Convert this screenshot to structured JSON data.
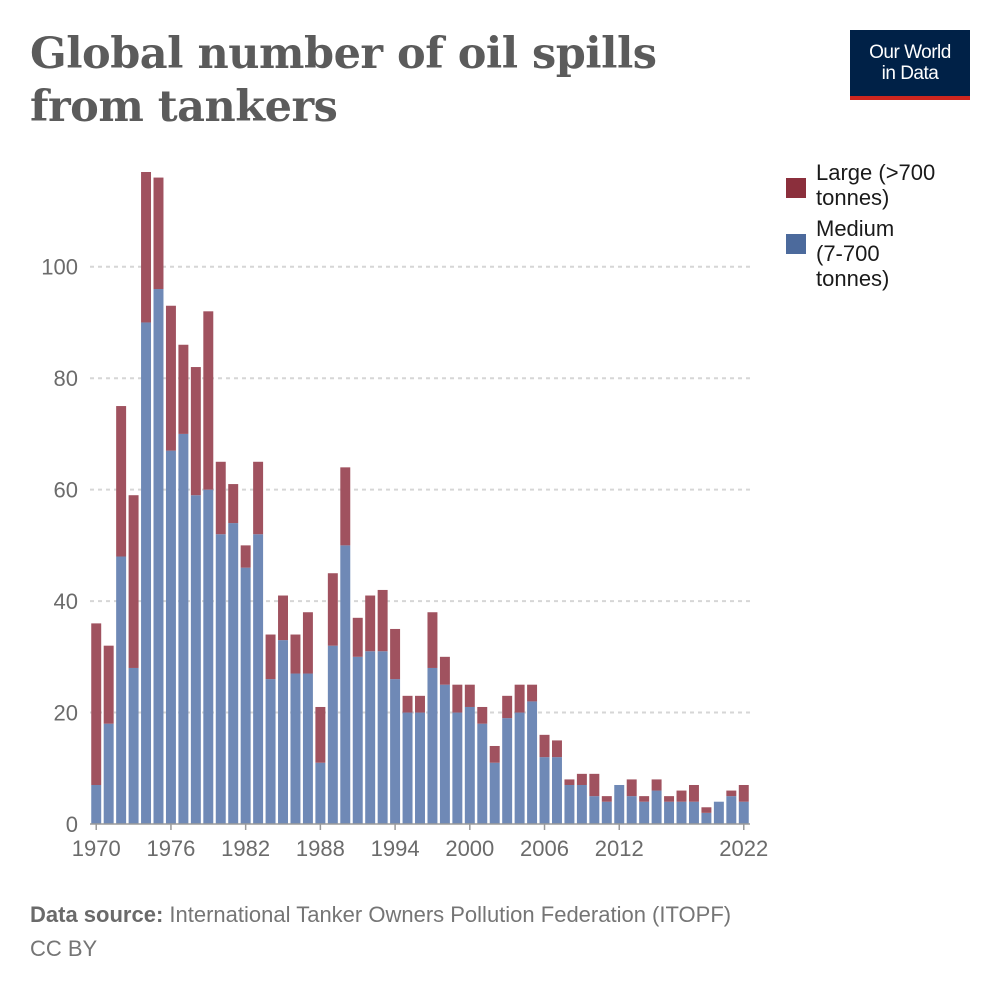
{
  "title": "Global number of oil spills from tankers",
  "logo": {
    "line1": "Our World",
    "line2": "in Data"
  },
  "footer": {
    "source_label": "Data source:",
    "source_text": "International Tanker Owners Pollution Federation (ITOPF)",
    "license": "CC BY"
  },
  "colors": {
    "large": "#a0525f",
    "medium": "#6f89b6",
    "large_swatch": "#8b2f3c",
    "medium_swatch": "#4c6a9c"
  },
  "chart_data": {
    "type": "bar",
    "stacked": true,
    "x": [
      1970,
      1971,
      1972,
      1973,
      1974,
      1975,
      1976,
      1977,
      1978,
      1979,
      1980,
      1981,
      1982,
      1983,
      1984,
      1985,
      1986,
      1987,
      1988,
      1989,
      1990,
      1991,
      1992,
      1993,
      1994,
      1995,
      1996,
      1997,
      1998,
      1999,
      2000,
      2001,
      2002,
      2003,
      2004,
      2005,
      2006,
      2007,
      2008,
      2009,
      2010,
      2011,
      2012,
      2013,
      2014,
      2015,
      2016,
      2017,
      2018,
      2019,
      2020,
      2021,
      2022
    ],
    "series": [
      {
        "name": "Medium (7-700 tonnes)",
        "values": [
          7,
          18,
          48,
          28,
          90,
          96,
          67,
          70,
          59,
          60,
          52,
          54,
          46,
          52,
          26,
          33,
          27,
          27,
          11,
          32,
          50,
          30,
          31,
          31,
          26,
          20,
          20,
          28,
          25,
          20,
          21,
          18,
          11,
          19,
          20,
          22,
          12,
          12,
          7,
          7,
          5,
          4,
          7,
          5,
          4,
          6,
          4,
          4,
          4,
          2,
          4,
          5,
          4
        ]
      },
      {
        "name": "Large (>700 tonnes)",
        "values": [
          29,
          14,
          27,
          31,
          27,
          20,
          26,
          16,
          23,
          32,
          13,
          7,
          4,
          13,
          8,
          8,
          7,
          11,
          10,
          13,
          14,
          7,
          10,
          11,
          9,
          3,
          3,
          10,
          5,
          5,
          4,
          3,
          3,
          4,
          5,
          3,
          4,
          3,
          1,
          2,
          4,
          1,
          0,
          3,
          1,
          2,
          1,
          2,
          3,
          1,
          0,
          1,
          3
        ]
      }
    ],
    "legend": [
      "Large (>700 tonnes)",
      "Medium (7-700 tonnes)"
    ],
    "legend_lines": [
      [
        "Large (>700",
        "tonnes)"
      ],
      [
        "Medium",
        "(7-700",
        "tonnes)"
      ]
    ],
    "ylim": [
      0,
      117
    ],
    "yticks": [
      0,
      20,
      40,
      60,
      80,
      100
    ],
    "xticks": [
      1970,
      1976,
      1982,
      1988,
      1994,
      2000,
      2006,
      2012,
      2022
    ],
    "grid": true,
    "legend_position": "right"
  }
}
